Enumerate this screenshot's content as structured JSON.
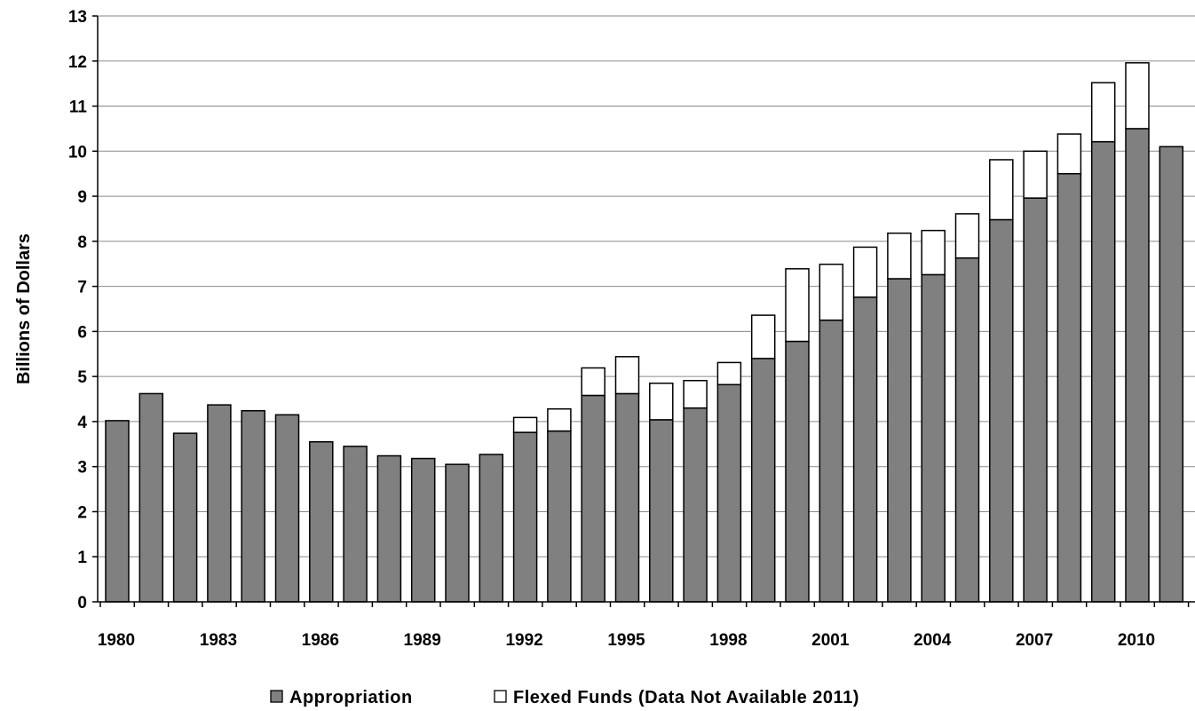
{
  "chart_data": {
    "type": "bar",
    "stacked": true,
    "ylabel": "Billions of Dollars",
    "xlabel": "",
    "ylim": [
      0,
      13
    ],
    "yticks": [
      "0",
      "1",
      "2",
      "3",
      "4",
      "5",
      "6",
      "7",
      "8",
      "9",
      "10",
      "11",
      "12",
      "13"
    ],
    "grid": true,
    "legend_position": "bottom",
    "categories": [
      "1980",
      "1981",
      "1982",
      "1983",
      "1984",
      "1985",
      "1986",
      "1987",
      "1988",
      "1989",
      "1990",
      "1991",
      "1992",
      "1993",
      "1994",
      "1995",
      "1996",
      "1997",
      "1998",
      "1999",
      "2000",
      "2001",
      "2002",
      "2003",
      "2004",
      "2005",
      "2006",
      "2007",
      "2008",
      "2009",
      "2010",
      "2011"
    ],
    "xtick_labels": [
      "1980",
      "1983",
      "1986",
      "1989",
      "1992",
      "1995",
      "1998",
      "2001",
      "2004",
      "2007",
      "2010"
    ],
    "series": [
      {
        "name": "Appropriation",
        "color": "#808080",
        "values": [
          4.02,
          4.62,
          3.74,
          4.37,
          4.24,
          4.15,
          3.55,
          3.45,
          3.24,
          3.18,
          3.05,
          3.27,
          3.76,
          3.79,
          4.58,
          4.62,
          4.04,
          4.3,
          4.82,
          5.4,
          5.78,
          6.25,
          6.76,
          7.17,
          7.26,
          7.63,
          8.48,
          8.96,
          9.5,
          10.21,
          10.5,
          10.1
        ]
      },
      {
        "name": "Flexed Funds (Data Not Available 2011)",
        "color": "#ffffff",
        "values": [
          0,
          0,
          0,
          0,
          0,
          0,
          0,
          0,
          0,
          0,
          0,
          0,
          0.33,
          0.49,
          0.61,
          0.82,
          0.81,
          0.61,
          0.49,
          0.96,
          1.61,
          1.24,
          1.11,
          1.01,
          0.98,
          0.98,
          1.33,
          1.04,
          0.88,
          1.31,
          1.46,
          0
        ]
      }
    ]
  }
}
